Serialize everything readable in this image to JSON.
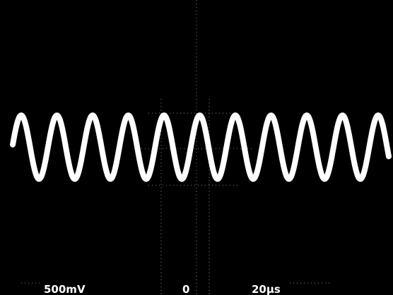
{
  "screen": {
    "readouts": {
      "volts_per_div": "500mV",
      "trigger": "0",
      "time_per_div": "20µs"
    }
  }
}
